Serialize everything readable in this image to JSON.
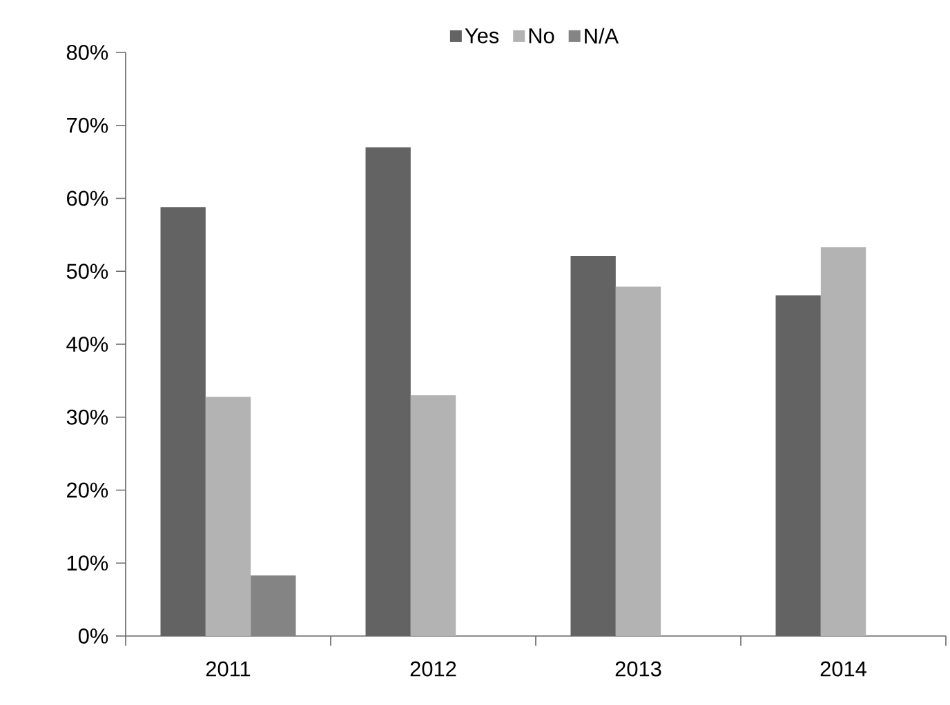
{
  "chart_data": {
    "type": "bar",
    "categories": [
      "2011",
      "2012",
      "2013",
      "2014"
    ],
    "series": [
      {
        "name": "Yes",
        "color": "#636363",
        "values": [
          58.8,
          67.0,
          52.1,
          46.7
        ]
      },
      {
        "name": "No",
        "color": "#b3b3b3",
        "values": [
          32.8,
          33.0,
          47.9,
          53.3
        ]
      },
      {
        "name": "N/A",
        "color": "#848484",
        "values": [
          8.3,
          null,
          null,
          null
        ]
      }
    ],
    "ylim": [
      0,
      80
    ],
    "yticks": [
      {
        "value": 0,
        "label": "0%"
      },
      {
        "value": 10,
        "label": "10%"
      },
      {
        "value": 20,
        "label": "20%"
      },
      {
        "value": 30,
        "label": "30%"
      },
      {
        "value": 40,
        "label": "40%"
      },
      {
        "value": 50,
        "label": "50%"
      },
      {
        "value": 60,
        "label": "60%"
      },
      {
        "value": 70,
        "label": "70%"
      },
      {
        "value": 80,
        "label": "80%"
      }
    ],
    "grid": false,
    "legend": "top"
  }
}
